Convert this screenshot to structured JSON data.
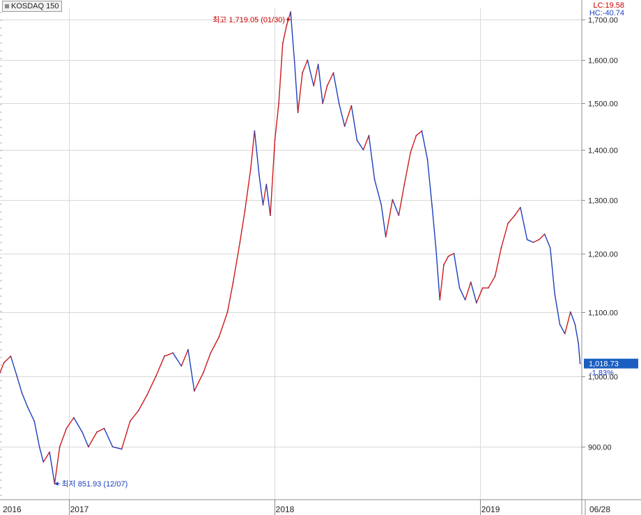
{
  "legend": {
    "name": "KOSDAQ 150",
    "icon": "square-icon"
  },
  "header": {
    "lc": "LC:19.58",
    "hc": "HC:-40.74"
  },
  "colors": {
    "up": "#d01818",
    "down": "#1a3fc0",
    "grid": "#d8d8d8",
    "axis": "#8c8c8c",
    "price_box": "#1a5fc0"
  },
  "chart_data": {
    "type": "line",
    "title": "KOSDAQ 150",
    "xlabel": "",
    "ylabel": "",
    "ylim": [
      832,
      1728
    ],
    "y_scale": "log",
    "y_ticks": [
      900,
      1000,
      1100,
      1200,
      1300,
      1400,
      1500,
      1600,
      1700
    ],
    "y_tick_labels": [
      "900.00",
      "1,000.00",
      "1,100.00",
      "1,200.00",
      "1,300.00",
      "1,400.00",
      "1,500.00",
      "1,600.00",
      "1,700.00"
    ],
    "x_tick_labels": [
      "2016",
      "2017",
      "2018",
      "2019",
      "06/28"
    ],
    "x_range": [
      "2016-09",
      "2019-06"
    ],
    "grid": true,
    "series": [
      {
        "name": "KOSDAQ 150",
        "points": [
          [
            "2016-09-01",
            1005
          ],
          [
            "2016-09-08",
            1020
          ],
          [
            "2016-09-20",
            1030
          ],
          [
            "2016-10-01",
            1000
          ],
          [
            "2016-10-10",
            975
          ],
          [
            "2016-10-20",
            955
          ],
          [
            "2016-11-01",
            935
          ],
          [
            "2016-11-10",
            900
          ],
          [
            "2016-11-17",
            880
          ],
          [
            "2016-11-28",
            893
          ],
          [
            "2016-12-07",
            852
          ],
          [
            "2016-12-16",
            900
          ],
          [
            "2016-12-28",
            925
          ],
          [
            "2017-01-10",
            940
          ],
          [
            "2017-01-25",
            920
          ],
          [
            "2017-02-05",
            900
          ],
          [
            "2017-02-20",
            920
          ],
          [
            "2017-03-05",
            925
          ],
          [
            "2017-03-20",
            900
          ],
          [
            "2017-04-05",
            897
          ],
          [
            "2017-04-20",
            935
          ],
          [
            "2017-05-05",
            950
          ],
          [
            "2017-05-20",
            972
          ],
          [
            "2017-06-05",
            1000
          ],
          [
            "2017-06-20",
            1030
          ],
          [
            "2017-07-05",
            1035
          ],
          [
            "2017-07-20",
            1015
          ],
          [
            "2017-08-01",
            1040
          ],
          [
            "2017-08-12",
            978
          ],
          [
            "2017-08-28",
            1005
          ],
          [
            "2017-09-10",
            1035
          ],
          [
            "2017-09-25",
            1060
          ],
          [
            "2017-10-10",
            1100
          ],
          [
            "2017-10-20",
            1150
          ],
          [
            "2017-11-01",
            1220
          ],
          [
            "2017-11-10",
            1280
          ],
          [
            "2017-11-20",
            1360
          ],
          [
            "2017-11-27",
            1440
          ],
          [
            "2017-12-05",
            1350
          ],
          [
            "2017-12-12",
            1290
          ],
          [
            "2017-12-18",
            1330
          ],
          [
            "2017-12-25",
            1270
          ],
          [
            "2018-01-02",
            1420
          ],
          [
            "2018-01-09",
            1500
          ],
          [
            "2018-01-16",
            1640
          ],
          [
            "2018-01-23",
            1685
          ],
          [
            "2018-01-30",
            1719
          ],
          [
            "2018-02-06",
            1595
          ],
          [
            "2018-02-12",
            1480
          ],
          [
            "2018-02-20",
            1570
          ],
          [
            "2018-03-01",
            1600
          ],
          [
            "2018-03-12",
            1540
          ],
          [
            "2018-03-20",
            1590
          ],
          [
            "2018-03-28",
            1500
          ],
          [
            "2018-04-05",
            1540
          ],
          [
            "2018-04-16",
            1570
          ],
          [
            "2018-04-26",
            1500
          ],
          [
            "2018-05-06",
            1450
          ],
          [
            "2018-05-18",
            1495
          ],
          [
            "2018-05-28",
            1420
          ],
          [
            "2018-06-08",
            1400
          ],
          [
            "2018-06-18",
            1430
          ],
          [
            "2018-06-28",
            1340
          ],
          [
            "2018-07-10",
            1290
          ],
          [
            "2018-07-18",
            1230
          ],
          [
            "2018-07-30",
            1300
          ],
          [
            "2018-08-10",
            1270
          ],
          [
            "2018-08-20",
            1330
          ],
          [
            "2018-08-31",
            1395
          ],
          [
            "2018-09-10",
            1430
          ],
          [
            "2018-09-20",
            1440
          ],
          [
            "2018-09-30",
            1380
          ],
          [
            "2018-10-08",
            1290
          ],
          [
            "2018-10-15",
            1210
          ],
          [
            "2018-10-22",
            1120
          ],
          [
            "2018-10-29",
            1180
          ],
          [
            "2018-11-06",
            1195
          ],
          [
            "2018-11-16",
            1200
          ],
          [
            "2018-11-26",
            1140
          ],
          [
            "2018-12-06",
            1120
          ],
          [
            "2018-12-16",
            1150
          ],
          [
            "2018-12-26",
            1115
          ],
          [
            "2019-01-06",
            1140
          ],
          [
            "2019-01-16",
            1140
          ],
          [
            "2019-01-28",
            1160
          ],
          [
            "2019-02-08",
            1210
          ],
          [
            "2019-02-20",
            1255
          ],
          [
            "2019-03-04",
            1270
          ],
          [
            "2019-03-14",
            1285
          ],
          [
            "2019-03-26",
            1225
          ],
          [
            "2019-04-06",
            1220
          ],
          [
            "2019-04-16",
            1225
          ],
          [
            "2019-04-26",
            1235
          ],
          [
            "2019-05-06",
            1210
          ],
          [
            "2019-05-14",
            1130
          ],
          [
            "2019-05-23",
            1080
          ],
          [
            "2019-06-01",
            1065
          ],
          [
            "2019-06-11",
            1100
          ],
          [
            "2019-06-19",
            1080
          ],
          [
            "2019-06-25",
            1050
          ],
          [
            "2019-06-28",
            1018.73
          ]
        ]
      }
    ],
    "annotations": [
      {
        "label": "최고 1,719.05 (01/30)",
        "date": "2018-01-30",
        "value": 1719.05,
        "kind": "high"
      },
      {
        "label": "최저 851.93 (12/07)",
        "date": "2016-12-07",
        "value": 851.93,
        "kind": "low"
      }
    ],
    "last": {
      "value": 1018.73,
      "label": "1,018.73",
      "change": "-1.83%"
    }
  }
}
